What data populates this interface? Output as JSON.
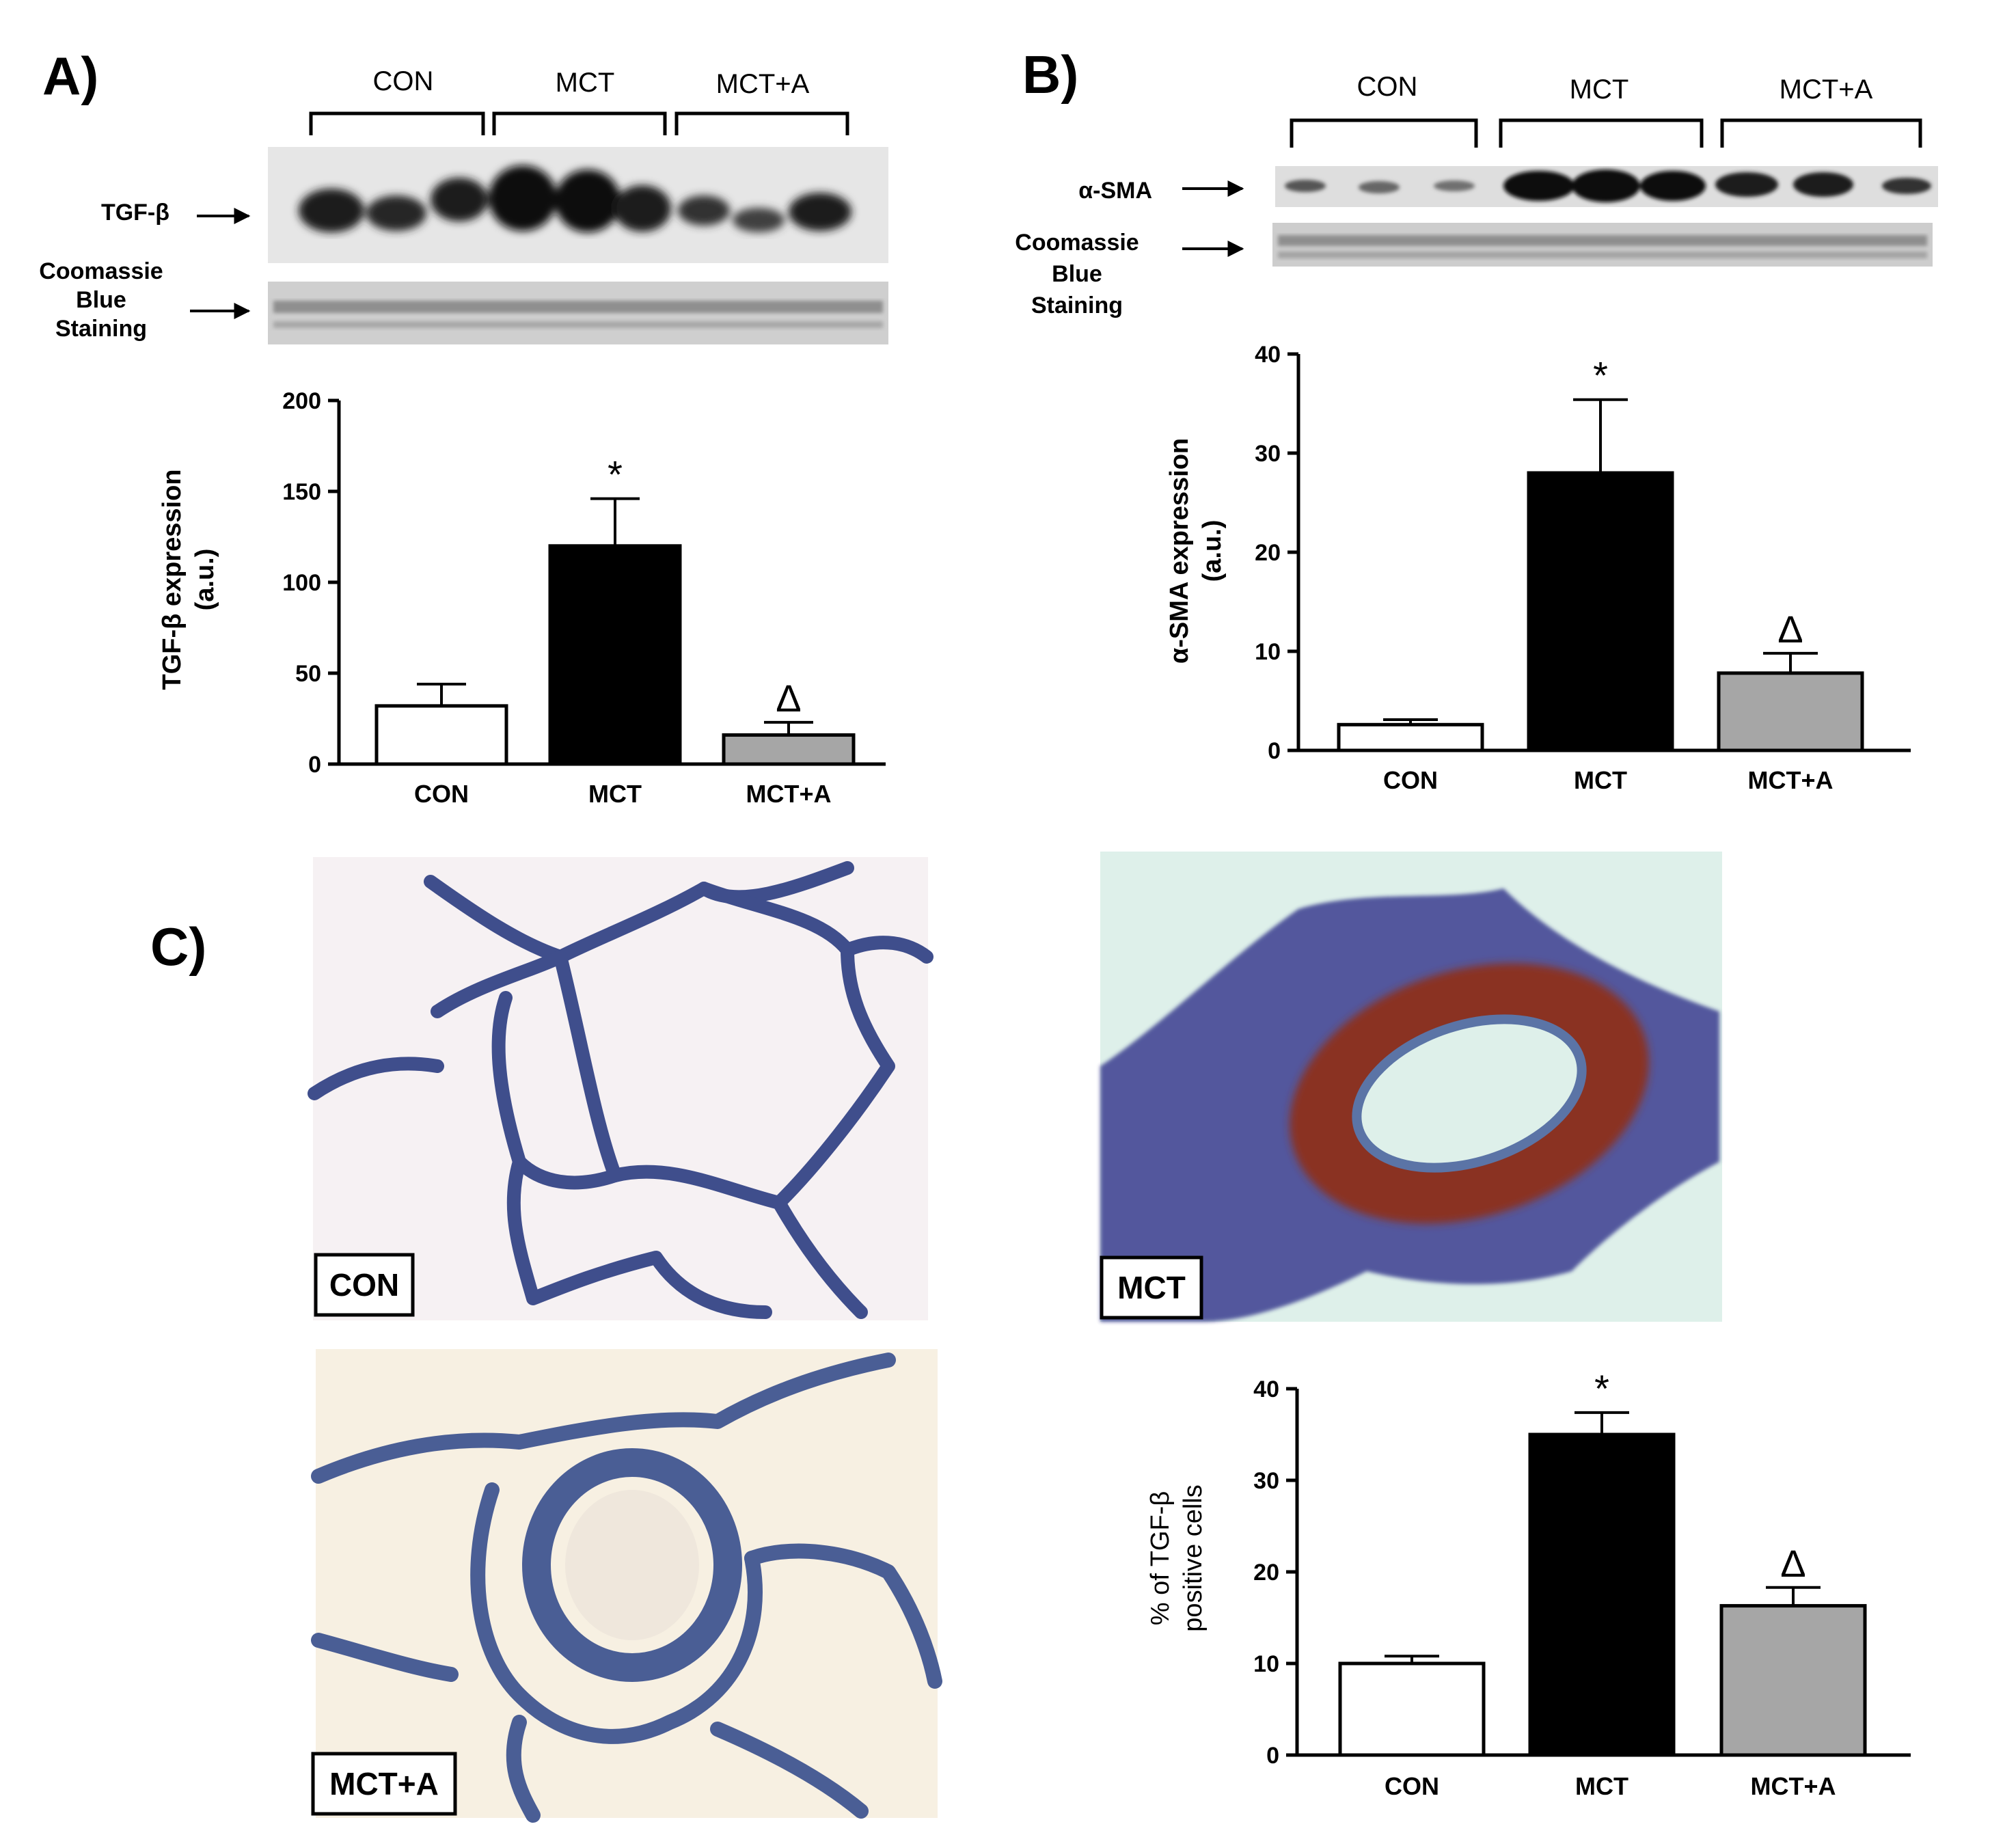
{
  "panels": {
    "a": {
      "letter": "A)",
      "groups": [
        "CON",
        "MCT",
        "MCT+A"
      ],
      "blot_rows": [
        {
          "label": "TGF-β"
        },
        {
          "label_lines": [
            "Coomassie",
            "Blue",
            "Staining"
          ]
        }
      ],
      "chart_data": {
        "type": "bar",
        "categories": [
          "CON",
          "MCT",
          "MCT+A"
        ],
        "values": [
          32,
          120,
          16
        ],
        "errors": [
          12,
          26,
          7
        ],
        "annotations": [
          "",
          "*",
          "Δ"
        ],
        "ylabel_lines": [
          "TGF-β expression",
          "(a.u.)"
        ],
        "ylim": [
          0,
          200
        ],
        "yticks": [
          0,
          50,
          100,
          150,
          200
        ],
        "colors": [
          "#ffffff",
          "#000000",
          "#a6a6a6"
        ]
      }
    },
    "b": {
      "letter": "B)",
      "groups": [
        "CON",
        "MCT",
        "MCT+A"
      ],
      "blot_rows": [
        {
          "label": "α-SMA"
        },
        {
          "label_lines": [
            "Coomassie",
            "Blue",
            "Staining"
          ]
        }
      ],
      "chart_data": {
        "type": "bar",
        "categories": [
          "CON",
          "MCT",
          "MCT+A"
        ],
        "values": [
          2.6,
          28,
          7.8
        ],
        "errors": [
          0.5,
          7.4,
          2.0
        ],
        "annotations": [
          "",
          "*",
          "Δ"
        ],
        "ylabel_lines": [
          "α-SMA expression",
          "(a.u.)"
        ],
        "ylim": [
          0,
          40
        ],
        "yticks": [
          0,
          10,
          20,
          30,
          40
        ],
        "colors": [
          "#ffffff",
          "#000000",
          "#a6a6a6"
        ]
      }
    },
    "c": {
      "letter": "C)",
      "micrographs": [
        {
          "label": "CON",
          "background": "#f6f1f3",
          "stain": "#3f4e8c"
        },
        {
          "label": "MCT",
          "background": "#def0ea",
          "stain": "#8a3320"
        },
        {
          "label": "MCT+A",
          "background": "#f7f0e2",
          "stain": "#4a5e95"
        }
      ],
      "chart_data": {
        "type": "bar",
        "categories": [
          "CON",
          "MCT",
          "MCT+A"
        ],
        "values": [
          10,
          35,
          16.3
        ],
        "errors": [
          0.8,
          2.4,
          2.0
        ],
        "annotations": [
          "",
          "*",
          "Δ"
        ],
        "ylabel_lines": [
          "% of TGF-β",
          "positive cells"
        ],
        "ylim": [
          0,
          40
        ],
        "yticks": [
          0,
          10,
          20,
          30,
          40
        ],
        "colors": [
          "#ffffff",
          "#000000",
          "#a6a6a6"
        ]
      }
    }
  }
}
